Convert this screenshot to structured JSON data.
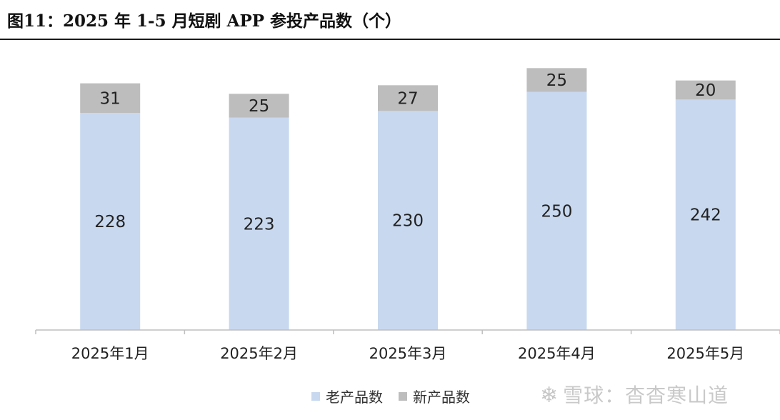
{
  "title": "图11：2025 年 1-5 月短剧 APP 参投产品数（个）",
  "colors": {
    "old": "#c8d8ef",
    "new": "#bdbdbd",
    "axis": "#bfbfbf",
    "text": "#222222"
  },
  "chart_data": {
    "type": "bar",
    "stacked": true,
    "categories": [
      "2025年1月",
      "2025年2月",
      "2025年3月",
      "2025年4月",
      "2025年5月"
    ],
    "series": [
      {
        "name": "老产品数",
        "values": [
          228,
          223,
          230,
          250,
          242
        ]
      },
      {
        "name": "新产品数",
        "values": [
          31,
          25,
          27,
          25,
          20
        ]
      }
    ],
    "ylim": [
      0,
      300
    ],
    "grid": false,
    "legend_position": "bottom"
  },
  "legend": [
    {
      "label": "老产品数",
      "color": "#c8d8ef"
    },
    {
      "label": "新产品数",
      "color": "#bdbdbd"
    }
  ],
  "watermark": {
    "logo": "icon-snowball",
    "text": "雪球：杳杳寒山道"
  }
}
